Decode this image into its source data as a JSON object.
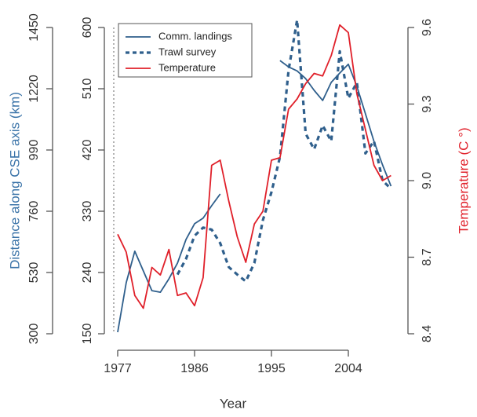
{
  "chart_data": {
    "type": "line",
    "x_label": "Year",
    "y_label": "Distance along CSE axis (km)",
    "y2_label": "Temperature (C °)",
    "x": [
      1977,
      1978,
      1979,
      1980,
      1981,
      1982,
      1983,
      1984,
      1985,
      1986,
      1987,
      1988,
      1989,
      1990,
      1991,
      1992,
      1993,
      1994,
      1995,
      1996,
      1997,
      1998,
      1999,
      2000,
      2001,
      2002,
      2003,
      2004,
      2005,
      2006,
      2007,
      2008,
      2009
    ],
    "xlim": [
      1977,
      2004
    ],
    "xticks": [
      1977,
      1986,
      1995,
      2004
    ],
    "ylim": [
      300,
      1450
    ],
    "yticks": [
      300,
      530,
      760,
      990,
      1220,
      1450
    ],
    "y3lim": [
      150,
      600
    ],
    "y3ticks": [
      150,
      240,
      330,
      420,
      510,
      600
    ],
    "y2lim": [
      8.4,
      9.6
    ],
    "y2ticks": [
      8.4,
      8.7,
      {
        "value": 9,
        "label": "9.0"
      },
      9.3,
      9.6
    ],
    "series": [
      {
        "name": "Comm. landings",
        "color": "#2f5f8c",
        "axis": "y",
        "style": "solid",
        "values": [
          306,
          492,
          610,
          536,
          462,
          456,
          506,
          565,
          654,
          713,
          734,
          781,
          825,
          null,
          null,
          null,
          null,
          null,
          null,
          1326,
          1302,
          1287,
          1258,
          1214,
          1176,
          1244,
          1279,
          1312,
          1229,
          1126,
          1022,
          934,
          854
        ]
      },
      {
        "name": "Trawl survey",
        "color": "#2f5f8c",
        "axis": "y3",
        "style": "dashed",
        "values": [
          null,
          null,
          null,
          null,
          null,
          null,
          null,
          237,
          260,
          294,
          306,
          303,
          283,
          248,
          237,
          227,
          254,
          317,
          358,
          410,
          537,
          611,
          444,
          421,
          456,
          433,
          565,
          496,
          519,
          415,
          433,
          375,
          363
        ]
      },
      {
        "name": "Temperature",
        "color": "#e0202a",
        "axis": "y2",
        "style": "solid",
        "values": [
          8.79,
          8.72,
          8.55,
          8.5,
          8.66,
          8.63,
          8.73,
          8.55,
          8.56,
          8.51,
          8.62,
          9.06,
          9.08,
          8.92,
          8.78,
          8.68,
          8.83,
          8.88,
          9.08,
          9.09,
          9.28,
          9.32,
          9.38,
          9.42,
          9.41,
          9.49,
          9.61,
          9.58,
          9.34,
          9.2,
          9.06,
          9.0,
          9.02
        ]
      }
    ],
    "legend": "top-left"
  }
}
